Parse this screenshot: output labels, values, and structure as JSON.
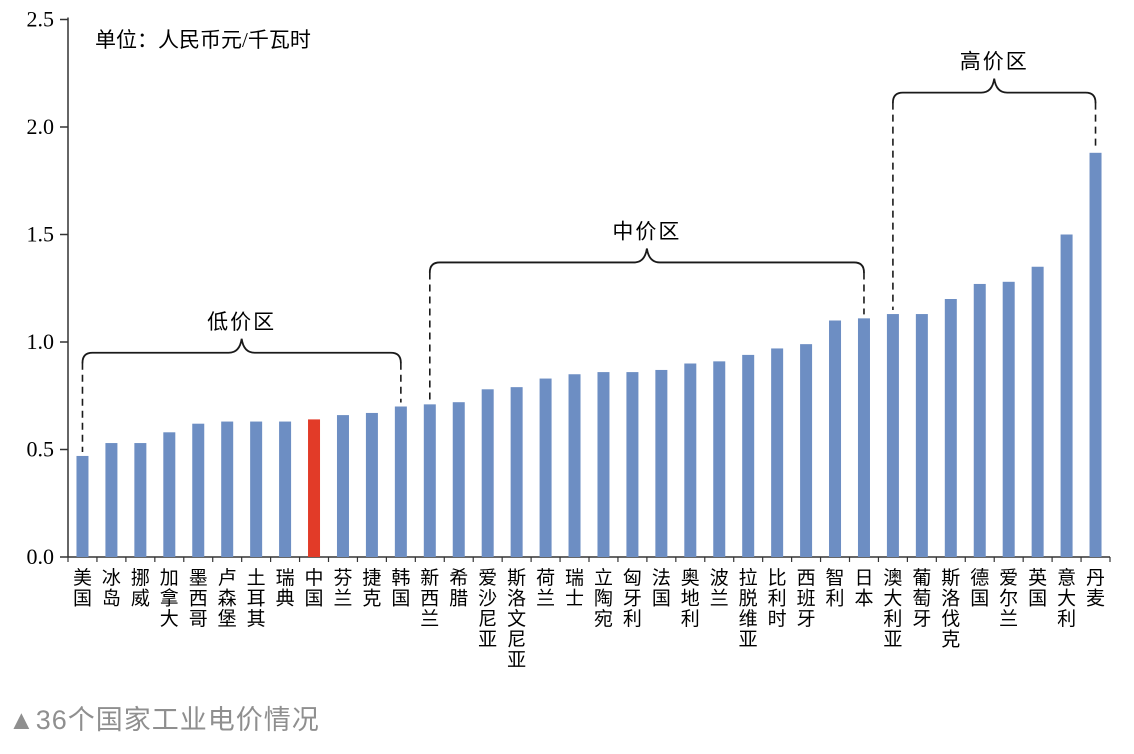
{
  "caption": "▲36个国家工业电价情况",
  "chart_data": {
    "type": "bar",
    "title": "36个国家工业电价情况",
    "unit_label": "单位：人民币元/千瓦时",
    "xlabel": "",
    "ylabel": "人民币元/千瓦时",
    "ylim": [
      0,
      2.5
    ],
    "ytick_step": 0.5,
    "yticks": [
      "0.0",
      "0.5",
      "1.0",
      "1.5",
      "2.0",
      "2.5"
    ],
    "grid": false,
    "legend": "none",
    "bar_color": "#6D8EC3",
    "highlight_color": "#E23B28",
    "axis_color": "#333333",
    "highlight_category": "中国",
    "categories": [
      "美国",
      "冰岛",
      "挪威",
      "加拿大",
      "墨西哥",
      "卢森堡",
      "土耳其",
      "瑞典",
      "中国",
      "芬兰",
      "捷克",
      "韩国",
      "新西兰",
      "希腊",
      "爱沙尼亚",
      "斯洛文尼亚",
      "荷兰",
      "瑞士",
      "立陶宛",
      "匈牙利",
      "法国",
      "奥地利",
      "波兰",
      "拉脱维亚",
      "比利时",
      "西班牙",
      "智利",
      "日本",
      "澳大利亚",
      "葡萄牙",
      "斯洛伐克",
      "德国",
      "爱尔兰",
      "英国",
      "意大利",
      "丹麦"
    ],
    "values": [
      0.47,
      0.53,
      0.53,
      0.58,
      0.62,
      0.63,
      0.63,
      0.63,
      0.64,
      0.66,
      0.67,
      0.7,
      0.71,
      0.72,
      0.78,
      0.79,
      0.83,
      0.85,
      0.86,
      0.86,
      0.87,
      0.9,
      0.91,
      0.94,
      0.97,
      0.99,
      1.1,
      1.11,
      1.13,
      1.13,
      1.2,
      1.27,
      1.28,
      1.35,
      1.5,
      1.88
    ],
    "zones": [
      {
        "label": "低价区",
        "from": "美国",
        "to": "韩国",
        "from_index": 0,
        "to_index": 11,
        "bracket_level": 0.95
      },
      {
        "label": "中价区",
        "from": "新西兰",
        "to": "日本",
        "from_index": 12,
        "to_index": 27,
        "bracket_level": 1.37
      },
      {
        "label": "高价区",
        "from": "澳大利亚",
        "to": "丹麦",
        "from_index": 28,
        "to_index": 35,
        "bracket_level": 2.16
      }
    ]
  }
}
